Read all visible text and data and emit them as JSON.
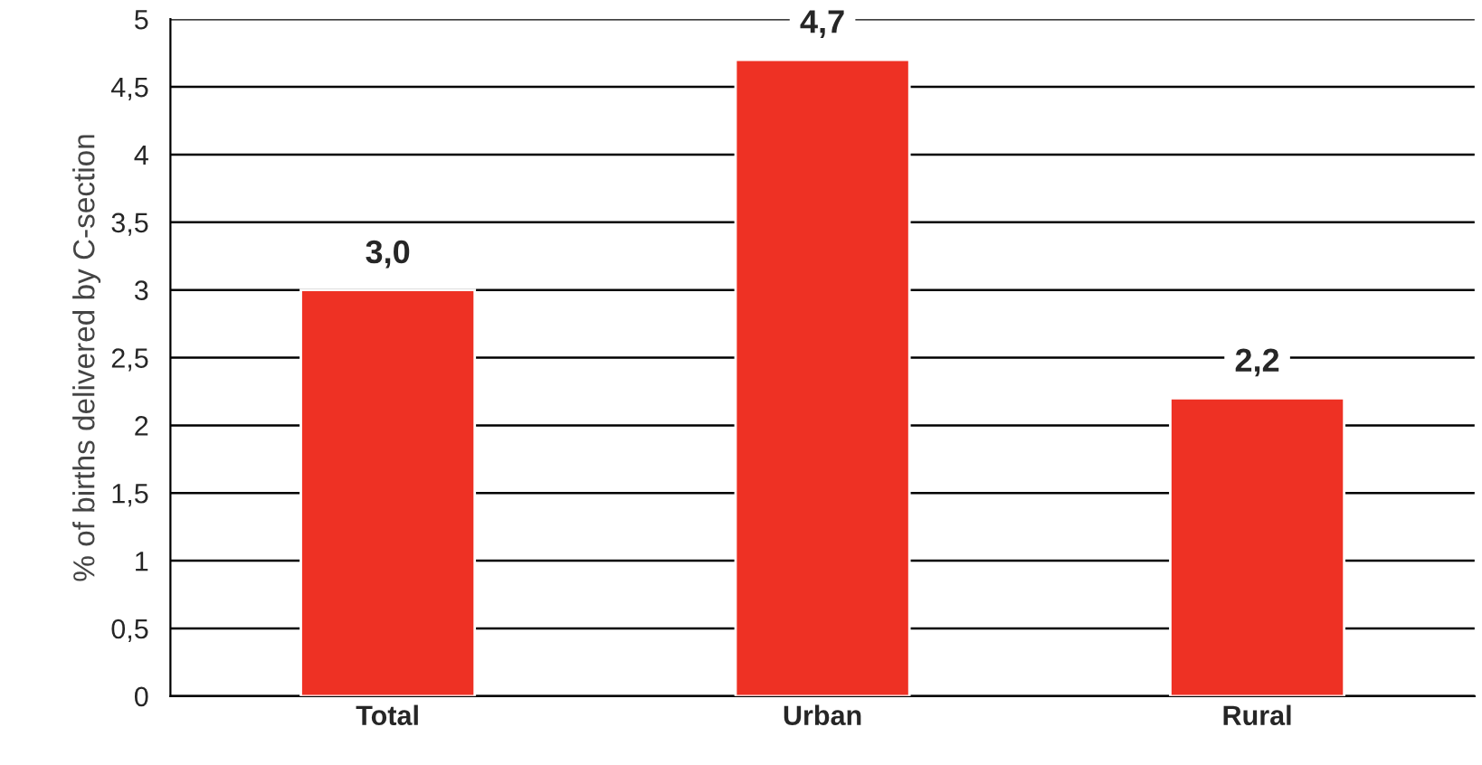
{
  "chart_data": {
    "type": "bar",
    "ylabel": "% of births delivered by C-section",
    "categories": [
      "Total",
      "Urban",
      "Rural"
    ],
    "values": [
      3.0,
      4.7,
      2.2
    ],
    "value_labels": [
      "3,0",
      "4,7",
      "2,2"
    ],
    "color": "#ee3124",
    "ylim": [
      0,
      5
    ],
    "yticks": [
      0,
      {
        "value": 0.5,
        "label": "0,5"
      },
      1,
      {
        "value": 1.5,
        "label": "1,5"
      },
      2,
      {
        "value": 2.5,
        "label": "2,5"
      },
      3,
      {
        "value": 3.5,
        "label": "3,5"
      },
      4,
      {
        "value": 4.5,
        "label": "4,5"
      },
      5
    ],
    "grid": "y",
    "legend": false
  }
}
